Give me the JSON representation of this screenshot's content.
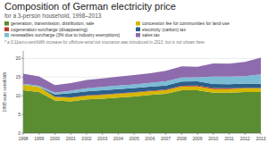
{
  "chart_data": {
    "type": "area",
    "stacked": true,
    "title": "Composition of German electricity price",
    "subtitle": "for a 3-person household, 1998–2013",
    "annotations": [
      "* a 0.11euro-cent/kWh increase for offshore wind risk insurance was introduced in 2013, but is not shown here."
    ],
    "ylabel": "1998 euro cent/kWh",
    "x": [
      1998,
      1999,
      2000,
      2001,
      2002,
      2003,
      2004,
      2005,
      2006,
      2007,
      2008,
      2009,
      2010,
      2011,
      2012,
      2013
    ],
    "xlim": [
      1998,
      2013
    ],
    "xticks": [
      1998,
      1999,
      2000,
      2001,
      2002,
      2003,
      2004,
      2005,
      2006,
      2007,
      2008,
      2009,
      2010,
      2011,
      2012,
      2013
    ],
    "ylim": [
      0,
      22
    ],
    "yticks": [
      0,
      5,
      10,
      15,
      20
    ],
    "grid": true,
    "series": [
      {
        "name": "generation, transmission, distribution, sale",
        "color": "#5a8c32",
        "values": [
          11.5,
          11.0,
          8.7,
          8.5,
          9.0,
          9.2,
          9.5,
          9.8,
          10.2,
          10.5,
          11.5,
          11.5,
          10.8,
          10.8,
          11.0,
          11.0
        ]
      },
      {
        "name": "concession fee for communities for land-use",
        "color": "#d4b800",
        "values": [
          1.5,
          1.4,
          1.0,
          1.0,
          1.0,
          1.0,
          1.0,
          1.0,
          1.0,
          1.0,
          1.0,
          1.0,
          1.0,
          1.0,
          1.0,
          1.0
        ]
      },
      {
        "name": "cogeneration surcharge (disappearing)",
        "color": "#c0392b",
        "values": [
          0.0,
          0.0,
          0.05,
          0.08,
          0.1,
          0.15,
          0.15,
          0.15,
          0.15,
          0.15,
          0.2,
          0.25,
          0.25,
          0.2,
          0.15,
          0.1
        ]
      },
      {
        "name": "electricity (carbon) tax",
        "color": "#2c5f8a",
        "values": [
          0.0,
          0.0,
          0.6,
          1.1,
          1.1,
          1.1,
          1.1,
          1.1,
          1.1,
          1.1,
          1.1,
          1.1,
          1.1,
          1.1,
          1.1,
          1.1
        ]
      },
      {
        "name": "renewables surcharge (3% due to industry exemptions)",
        "color": "#7bbcd5",
        "values": [
          0.2,
          0.3,
          0.5,
          0.7,
          0.8,
          0.9,
          1.0,
          1.0,
          1.0,
          1.1,
          1.1,
          1.1,
          2.0,
          2.0,
          2.0,
          2.5
        ]
      },
      {
        "name": "sales tax",
        "color": "#8e6bad",
        "values": [
          2.7,
          2.5,
          2.0,
          2.0,
          2.2,
          2.3,
          2.4,
          2.5,
          2.6,
          2.8,
          3.0,
          2.8,
          3.5,
          3.5,
          3.8,
          4.5
        ]
      }
    ]
  }
}
